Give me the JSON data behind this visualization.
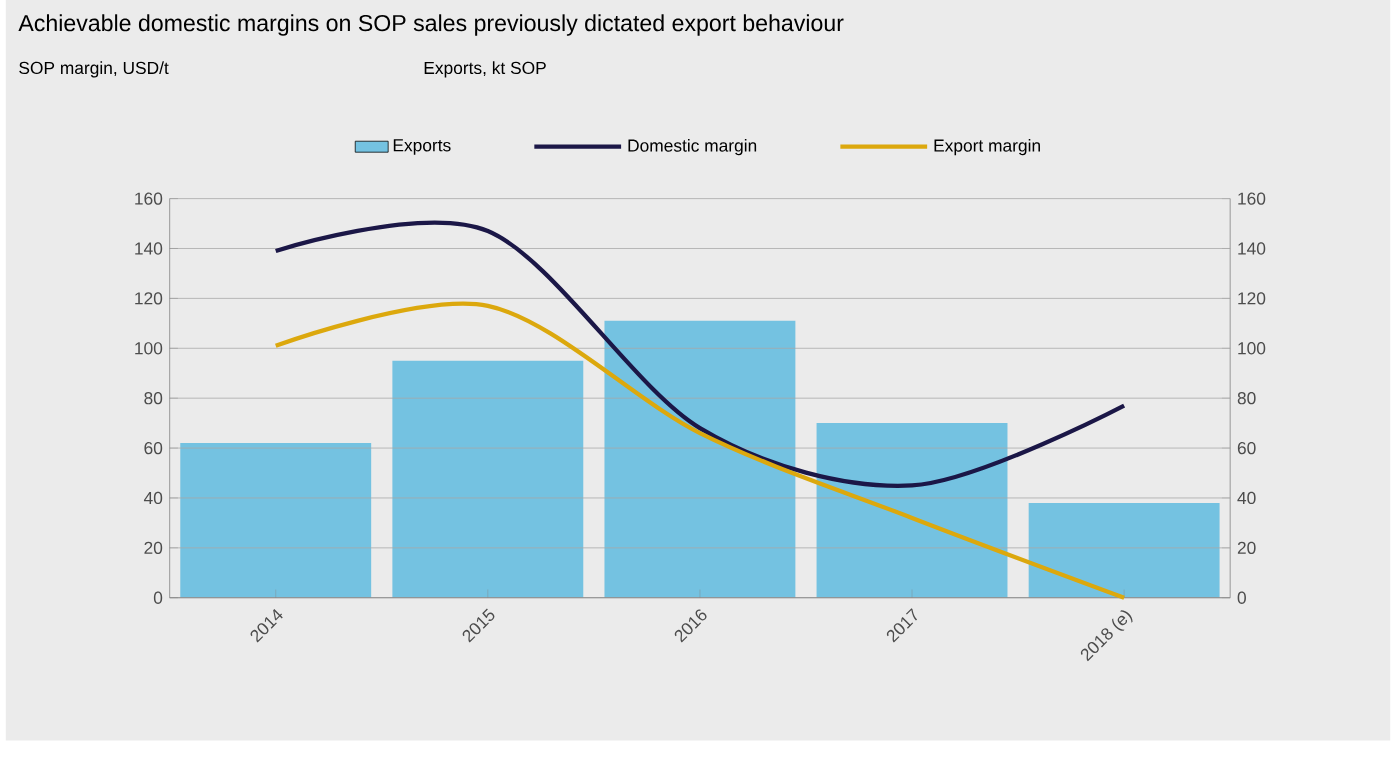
{
  "chart_data": {
    "type": "bar",
    "title": "Achievable domestic margins on SOP sales previously dictated export behaviour",
    "annotations": [
      "SOP margin, USD/t",
      "Exports, kt SOP"
    ],
    "categories": [
      "2014",
      "2015",
      "2016",
      "2017",
      "2018 (e)"
    ],
    "series": [
      {
        "name": "Exports",
        "axis": "y2",
        "color": "#74c2e1",
        "values": [
          62,
          95,
          111,
          70,
          38
        ]
      },
      {
        "name": "Domestic margin",
        "type": "line",
        "color": "#1b1747",
        "values": [
          139,
          147,
          68,
          45,
          77
        ]
      },
      {
        "name": "Export margin",
        "type": "line",
        "color": "#dca80d",
        "values": [
          101,
          117,
          66,
          32,
          0
        ]
      }
    ],
    "ylim": [
      0,
      160
    ],
    "yticks": [
      0,
      20,
      40,
      60,
      80,
      100,
      120,
      140,
      160
    ],
    "y2lim": [
      0,
      160
    ],
    "y2ticks": [
      0,
      20,
      40,
      60,
      80,
      100,
      120,
      140,
      160
    ],
    "grid": "y",
    "legend": "top",
    "marker": "none"
  }
}
